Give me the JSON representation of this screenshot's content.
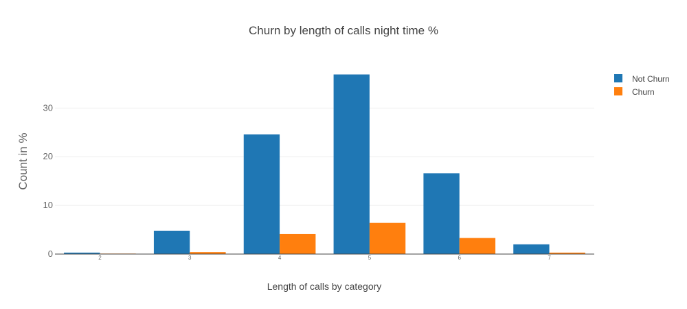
{
  "chart_data": {
    "type": "bar",
    "title": "Churn by length of calls night time %",
    "xlabel": "Length of calls by category",
    "ylabel": "Count in %",
    "categories": [
      "2",
      "3",
      "4",
      "5",
      "6",
      "7"
    ],
    "series": [
      {
        "name": "Not Churn",
        "color": "#1f77b4",
        "values": [
          0.3,
          4.8,
          24.6,
          36.9,
          16.6,
          2.0
        ]
      },
      {
        "name": "Churn",
        "color": "#ff7f0e",
        "values": [
          0.1,
          0.4,
          4.1,
          6.4,
          3.3,
          0.3
        ]
      }
    ],
    "ylim": [
      0,
      38.8
    ],
    "yticks": [
      0,
      10,
      20,
      30
    ],
    "grid": true,
    "legend": "top-right"
  }
}
